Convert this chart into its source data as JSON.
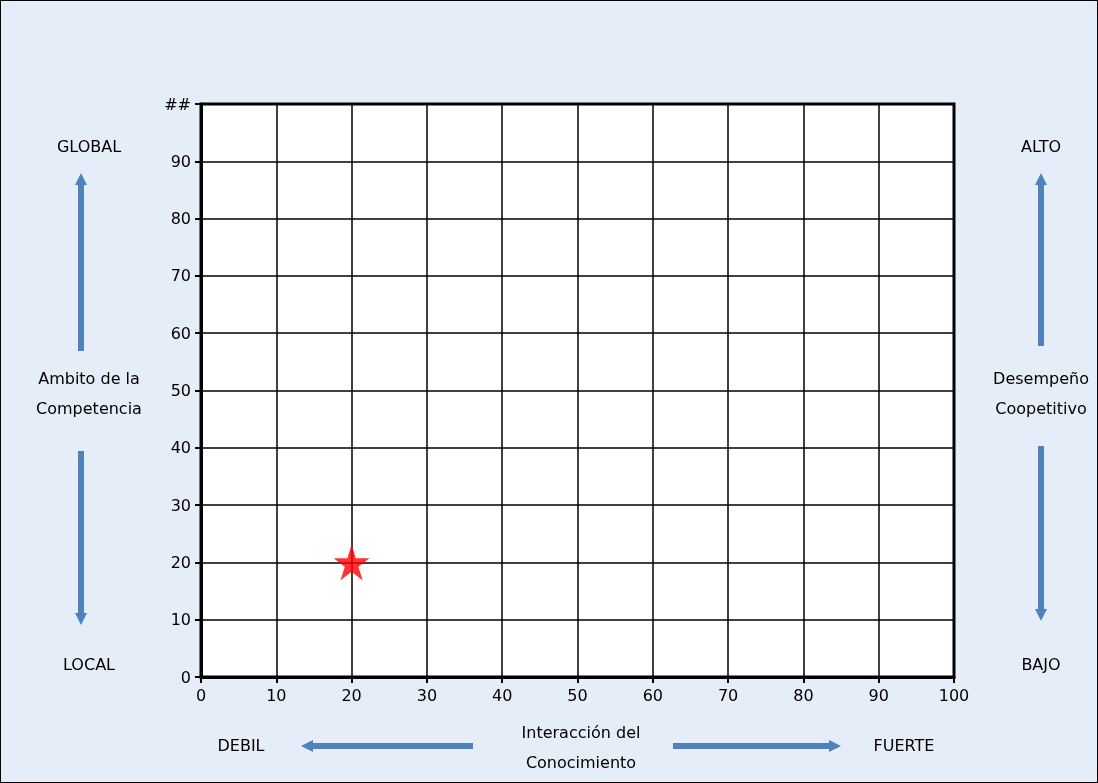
{
  "chart_data": {
    "type": "scatter",
    "xlabel": "Interacción del Conocimiento",
    "ylabel": "Ambito de la Competencia",
    "x": [
      20
    ],
    "values": [
      20
    ],
    "color": "#ff0000",
    "marker": "star",
    "xlim": [
      0,
      100
    ],
    "xticks": [
      0,
      10,
      20,
      30,
      40,
      50,
      60,
      70,
      80,
      90,
      100
    ],
    "ylim": [
      0,
      100
    ],
    "yticks": [
      0,
      10,
      20,
      30,
      40,
      50,
      60,
      70,
      80,
      90,
      {
        "value": 100,
        "label": "##"
      }
    ],
    "grid": true,
    "annotations": [
      "GLOBAL",
      "LOCAL",
      "ALTO",
      "BAJO",
      "Desempeño Coopetitivo",
      "DEBIL",
      "FUERTE"
    ]
  }
}
